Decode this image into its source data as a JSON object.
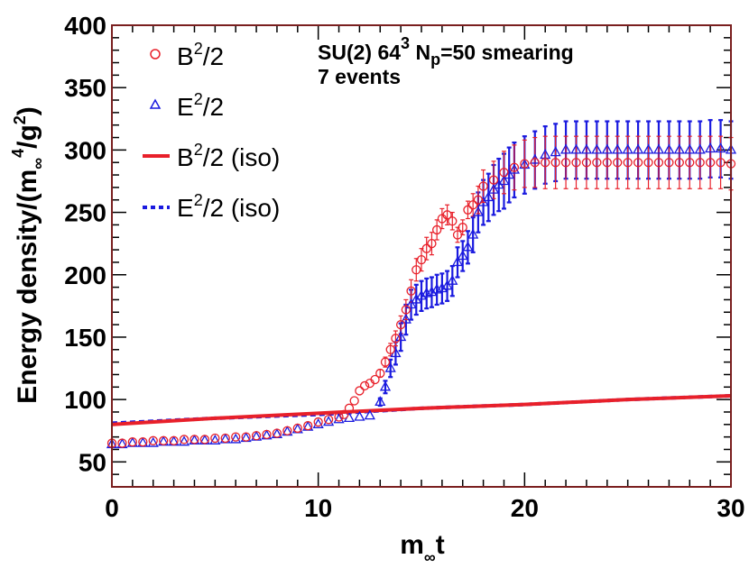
{
  "colors": {
    "frame": "#7a1f1f",
    "b_series": "#e8202a",
    "e_series": "#1a1adf",
    "text": "#000000"
  },
  "chart_data": {
    "type": "scatter",
    "xlabel_main": "m",
    "xlabel_sub": "∞",
    "xlabel_tail": "t",
    "ylabel_main": "Energy density/(m",
    "ylabel_sub": "∞",
    "ylabel_sup": "4",
    "ylabel_mid": "/g",
    "ylabel_sup2": "2",
    "ylabel_tail": ")",
    "xlim": [
      0,
      30
    ],
    "ylim": [
      30,
      400
    ],
    "x_major_ticks": [
      0,
      10,
      20,
      30
    ],
    "x_tick_labels": [
      "0",
      "10",
      "20",
      "30"
    ],
    "y_major_ticks": [
      50,
      100,
      150,
      200,
      250,
      300,
      350,
      400
    ],
    "y_tick_labels": [
      "50",
      "100",
      "150",
      "200",
      "250",
      "300",
      "350",
      "400"
    ],
    "annotation_line1": "SU(2) 64",
    "annotation_line1_sup": "3",
    "annotation_line1_mid": " N",
    "annotation_line1_sub": "p",
    "annotation_line1_tail": "=50 smearing",
    "annotation_line2": "7 events",
    "legend": [
      {
        "label": "B",
        "sup": "2",
        "tail": "/2",
        "marker": "circle"
      },
      {
        "label": "E",
        "sup": "2",
        "tail": "/2",
        "marker": "triangle"
      },
      {
        "label": "B",
        "sup": "2",
        "tail": "/2 (iso)",
        "marker": "solid-line"
      },
      {
        "label": "E",
        "sup": "2",
        "tail": "/2 (iso)",
        "marker": "dashed-line"
      }
    ],
    "series": [
      {
        "name": "B^2/2",
        "marker": "circle",
        "x": [
          0,
          0.5,
          1,
          1.5,
          2,
          2.5,
          3,
          3.5,
          4,
          4.5,
          5,
          5.5,
          6,
          6.5,
          7,
          7.5,
          8,
          8.5,
          9,
          9.5,
          10,
          10.5,
          11,
          11.25,
          11.5,
          11.75,
          12,
          12.25,
          12.5,
          12.75,
          13,
          13.25,
          13.5,
          13.75,
          14,
          14.25,
          14.5,
          14.75,
          15,
          15.25,
          15.5,
          15.75,
          16,
          16.25,
          16.5,
          16.75,
          17,
          17.25,
          17.5,
          17.75,
          18,
          18.5,
          19,
          19.5,
          20,
          20.5,
          21,
          21.5,
          22,
          22.5,
          23,
          23.5,
          24,
          24.5,
          25,
          25.5,
          26,
          26.5,
          27,
          27.5,
          28,
          28.5,
          29,
          29.5,
          30
        ],
        "y": [
          65,
          65,
          66,
          66,
          67,
          67,
          67,
          68,
          68,
          68,
          69,
          69,
          70,
          70,
          71,
          72,
          73,
          75,
          77,
          79,
          82,
          84,
          86,
          88,
          93,
          99,
          107,
          111,
          113,
          116,
          121,
          130,
          140,
          149,
          160,
          172,
          187,
          204,
          212,
          221,
          225,
          236,
          245,
          248,
          243,
          232,
          238,
          252,
          256,
          260,
          271,
          276,
          282,
          286,
          289,
          290,
          290,
          290,
          290,
          290,
          290,
          290,
          290,
          290,
          290,
          290,
          290,
          290,
          290,
          290,
          290,
          290,
          290,
          290,
          289
        ],
        "err": [
          0,
          0,
          0,
          0,
          0,
          0,
          0,
          0,
          0,
          0,
          0,
          0,
          0,
          0,
          0,
          0,
          0,
          0,
          0,
          0,
          0,
          0,
          0,
          0,
          0,
          0,
          0,
          0,
          0,
          0,
          3,
          4,
          5,
          6,
          7,
          8,
          9,
          9,
          9,
          9,
          9,
          8,
          8,
          8,
          7,
          6,
          6,
          7,
          9,
          11,
          13,
          15,
          17,
          18,
          19,
          20,
          21,
          21,
          21,
          21,
          21,
          21,
          21,
          21,
          21,
          21,
          21,
          21,
          21,
          21,
          21,
          21,
          21,
          21,
          21
        ]
      },
      {
        "name": "E^2/2",
        "marker": "triangle",
        "x": [
          0,
          0.5,
          1,
          1.5,
          2,
          2.5,
          3,
          3.5,
          4,
          4.5,
          5,
          5.5,
          6,
          6.5,
          7,
          7.5,
          8,
          8.5,
          9,
          9.5,
          10,
          10.5,
          11,
          11.5,
          12,
          12.5,
          13,
          13.25,
          13.5,
          13.75,
          14,
          14.25,
          14.5,
          14.75,
          15,
          15.25,
          15.5,
          15.75,
          16,
          16.25,
          16.5,
          16.75,
          17,
          17.25,
          17.5,
          17.75,
          18,
          18.25,
          18.5,
          18.75,
          19,
          19.25,
          19.5,
          20,
          20.5,
          21,
          21.5,
          22,
          22.5,
          23,
          23.5,
          24,
          24.5,
          25,
          25.5,
          26,
          26.5,
          27,
          27.5,
          28,
          28.5,
          29,
          29.5,
          30
        ],
        "y": [
          64,
          64,
          65,
          65,
          65,
          66,
          66,
          66,
          67,
          67,
          67,
          68,
          68,
          69,
          70,
          71,
          72,
          74,
          76,
          78,
          80,
          82,
          84,
          85,
          86,
          87,
          98,
          110,
          125,
          137,
          150,
          164,
          176,
          180,
          183,
          185,
          186,
          188,
          189,
          191,
          195,
          210,
          215,
          222,
          232,
          250,
          258,
          262,
          268,
          272,
          275,
          280,
          284,
          288,
          292,
          296,
          298,
          300,
          300,
          300,
          300,
          300,
          300,
          300,
          300,
          300,
          300,
          300,
          300,
          300,
          300,
          301,
          301,
          300
        ],
        "err": [
          0,
          0,
          0,
          0,
          0,
          0,
          0,
          0,
          0,
          0,
          0,
          0,
          0,
          0,
          0,
          0,
          0,
          0,
          0,
          0,
          0,
          0,
          0,
          0,
          0,
          0,
          3,
          5,
          7,
          9,
          11,
          12,
          12,
          12,
          12,
          12,
          12,
          12,
          12,
          12,
          12,
          12,
          12,
          13,
          14,
          16,
          18,
          19,
          20,
          21,
          22,
          22,
          22,
          23,
          23,
          23,
          23,
          23,
          23,
          23,
          23,
          23,
          23,
          23,
          23,
          23,
          23,
          23,
          23,
          23,
          23,
          23,
          23,
          23
        ]
      },
      {
        "name": "B^2/2 (iso)",
        "style": "solid",
        "x": [
          0,
          5,
          10,
          15,
          20,
          25,
          30
        ],
        "y": [
          80,
          85,
          89,
          93,
          96,
          100,
          103
        ]
      },
      {
        "name": "E^2/2 (iso)",
        "style": "dashed",
        "x": [
          0,
          5,
          10,
          15,
          20,
          25,
          30
        ],
        "y": [
          81,
          85,
          88,
          93,
          96,
          100,
          103
        ]
      }
    ]
  }
}
